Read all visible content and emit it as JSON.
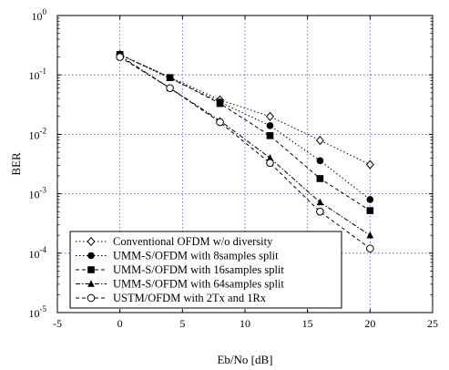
{
  "chart_data": {
    "type": "line",
    "xlabel": "Eb/No [dB]",
    "ylabel": "BER",
    "xlim": [
      -5,
      25
    ],
    "ylim": [
      1e-05,
      1
    ],
    "yscale": "log",
    "grid": true,
    "legend_position": "bottom-left",
    "x_ticks": [
      "-5",
      "0",
      "5",
      "10",
      "15",
      "20",
      "25"
    ],
    "y_ticks": [
      {
        "base": "10",
        "exp": "0"
      },
      {
        "base": "10",
        "exp": "-1"
      },
      {
        "base": "10",
        "exp": "-2"
      },
      {
        "base": "10",
        "exp": "-3"
      },
      {
        "base": "10",
        "exp": "-4"
      },
      {
        "base": "10",
        "exp": "-5"
      }
    ],
    "series": [
      {
        "name": "Conventional OFDM w/o diversity",
        "marker": "open-diamond",
        "dash": "dot",
        "x": [
          0,
          8,
          12,
          16,
          20
        ],
        "y": [
          0.22,
          0.038,
          0.02,
          0.0079,
          0.0031
        ]
      },
      {
        "name": "UMM-S/OFDM with 8samples split",
        "marker": "filled-circle",
        "dash": "dot",
        "x": [
          0,
          8,
          12,
          16,
          20
        ],
        "y": [
          0.22,
          0.035,
          0.014,
          0.0036,
          0.0008
        ]
      },
      {
        "name": "UMM-S/OFDM with 16samples split",
        "marker": "filled-square",
        "dash": "dash",
        "x": [
          0,
          4,
          8,
          12,
          16,
          20
        ],
        "y": [
          0.22,
          0.09,
          0.033,
          0.0095,
          0.0018,
          0.00052
        ]
      },
      {
        "name": "UMM-S/OFDM with 64samples split",
        "marker": "filled-triangle",
        "dash": "dashdot",
        "x": [
          0,
          4,
          8,
          12,
          16,
          20
        ],
        "y": [
          0.21,
          0.06,
          0.017,
          0.004,
          0.00072,
          0.0002
        ]
      },
      {
        "name": "USTM/OFDM with 2Tx and 1Rx",
        "marker": "open-circle",
        "dash": "dash",
        "x": [
          0,
          4,
          8,
          12,
          16,
          20
        ],
        "y": [
          0.2,
          0.06,
          0.016,
          0.0033,
          0.0005,
          0.00012
        ]
      }
    ]
  }
}
